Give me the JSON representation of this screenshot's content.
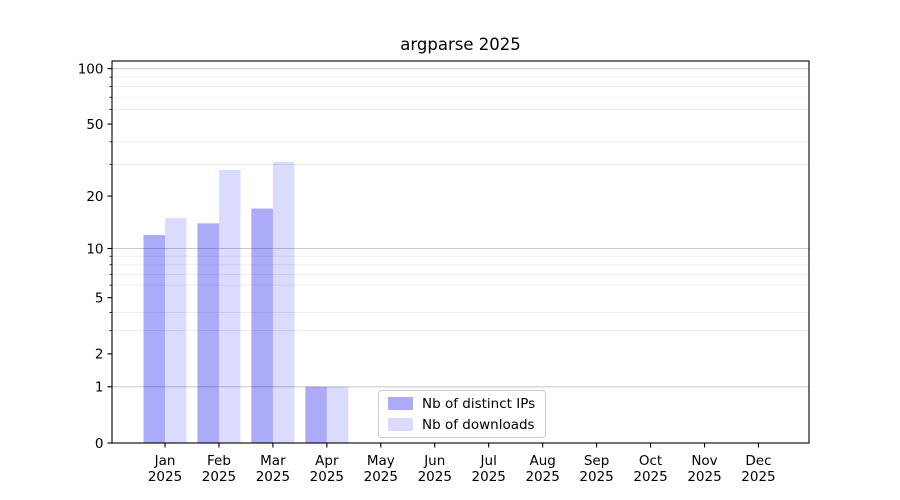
{
  "chart_data": {
    "type": "bar",
    "title": "argparse 2025",
    "categories": [
      "Jan",
      "Feb",
      "Mar",
      "Apr",
      "May",
      "Jun",
      "Jul",
      "Aug",
      "Sep",
      "Oct",
      "Nov",
      "Dec"
    ],
    "year_label": "2025",
    "series": [
      {
        "name": "Nb of distinct IPs",
        "color": "rgba(8,8,238,0.34)",
        "hex_on_white": "#aaaaf8",
        "values": [
          12,
          14,
          17,
          1,
          0,
          0,
          0,
          0,
          0,
          0,
          0,
          0
        ]
      },
      {
        "name": "Nb of downloads",
        "color": "rgba(8,8,238,0.145)",
        "hex_on_white": "#dbdbfa",
        "values": [
          15,
          28,
          31,
          1,
          0,
          0,
          0,
          0,
          0,
          0,
          0,
          0
        ]
      }
    ],
    "yscale": "log1p",
    "ylim": [
      0,
      110
    ],
    "yticks": [
      100,
      50,
      20,
      10,
      5,
      2,
      1,
      0
    ],
    "minor_yticks": [
      90,
      80,
      70,
      60,
      40,
      30,
      9,
      8,
      7,
      6,
      4,
      3
    ],
    "grid_major_lines": [
      1,
      10,
      100
    ],
    "grid": true,
    "legend_position": "lower center",
    "colors": {
      "grid_major": "#cbcbcb",
      "grid_minor": "#ededed",
      "spine": "#000000",
      "text": "#000000"
    }
  }
}
